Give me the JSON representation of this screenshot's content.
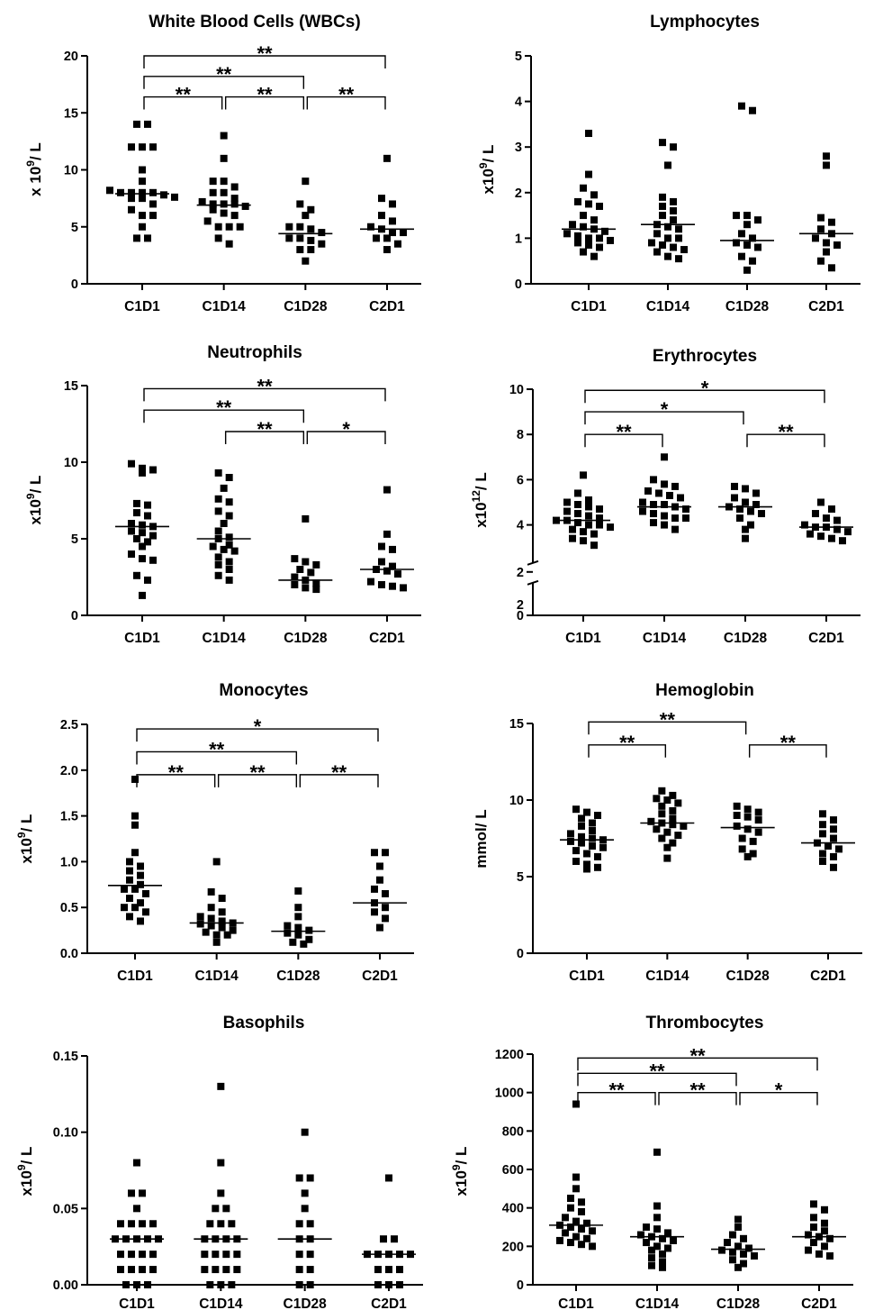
{
  "chart_data": [
    {
      "type": "scatter",
      "title": "White Blood Cells (WBCs)",
      "ylabel": [
        "x 10",
        "9",
        "/ L"
      ],
      "categories": [
        "C1D1",
        "C1D14",
        "C1D28",
        "C2D1"
      ],
      "ylim": [
        0,
        20
      ],
      "yticks": [
        {
          "v": 0,
          "t": "0"
        },
        {
          "v": 5,
          "t": "5"
        },
        {
          "v": 10,
          "t": "10"
        },
        {
          "v": 15,
          "t": "15"
        },
        {
          "v": 20,
          "t": "20"
        }
      ],
      "series": [
        {
          "values": [
            14,
            14,
            12,
            12,
            12,
            10,
            9,
            8.2,
            8,
            8,
            8,
            8,
            7.8,
            7.6,
            7.5,
            7.5,
            7,
            6.5,
            6,
            6,
            5,
            4,
            4
          ]
        },
        {
          "values": [
            13,
            11,
            9,
            9,
            8.5,
            8,
            8,
            7.5,
            7.2,
            7,
            7,
            7,
            6.8,
            6.5,
            6.2,
            6,
            5.5,
            5,
            5,
            5,
            4,
            3.5
          ]
        },
        {
          "values": [
            9,
            7,
            6.5,
            6,
            5,
            5,
            4.8,
            4.5,
            4,
            4,
            3.8,
            3.5,
            3,
            3,
            2
          ]
        },
        {
          "values": [
            11,
            7.5,
            7,
            6,
            5.5,
            5,
            4.8,
            4.5,
            4.5,
            4,
            4,
            3.5,
            3
          ]
        }
      ],
      "medians": [
        7.9,
        6.9,
        4.4,
        4.8
      ],
      "significance": [
        {
          "from": 0,
          "to": 3,
          "label": "**",
          "y": 20
        },
        {
          "from": 0,
          "to": 2,
          "label": "**",
          "y": 18.2
        },
        {
          "from": 0,
          "to": 1,
          "label": "**",
          "y": 16.4
        },
        {
          "from": 1,
          "to": 2,
          "label": "**",
          "y": 16.4
        },
        {
          "from": 2,
          "to": 3,
          "label": "**",
          "y": 16.4
        }
      ]
    },
    {
      "type": "scatter",
      "title": "Lymphocytes",
      "ylabel": [
        "x10",
        "9",
        "/ L"
      ],
      "categories": [
        "C1D1",
        "C1D14",
        "C1D28",
        "C2D1"
      ],
      "ylim": [
        0,
        5
      ],
      "yticks": [
        {
          "v": 0,
          "t": "0"
        },
        {
          "v": 1,
          "t": "1"
        },
        {
          "v": 2,
          "t": "2"
        },
        {
          "v": 3,
          "t": "3"
        },
        {
          "v": 4,
          "t": "4"
        },
        {
          "v": 5,
          "t": "5"
        }
      ],
      "series": [
        {
          "values": [
            3.3,
            2.4,
            2.1,
            1.95,
            1.8,
            1.75,
            1.7,
            1.5,
            1.4,
            1.3,
            1.25,
            1.2,
            1.15,
            1.1,
            1.05,
            1,
            1,
            0.95,
            0.9,
            0.85,
            0.8,
            0.7,
            0.6
          ]
        },
        {
          "values": [
            3.1,
            3,
            2.6,
            1.9,
            1.8,
            1.7,
            1.6,
            1.5,
            1.4,
            1.3,
            1.25,
            1.2,
            1.1,
            1,
            1,
            0.9,
            0.85,
            0.8,
            0.75,
            0.7,
            0.6,
            0.55
          ]
        },
        {
          "values": [
            3.9,
            3.8,
            1.5,
            1.5,
            1.4,
            1.3,
            1.1,
            1,
            0.9,
            0.85,
            0.8,
            0.6,
            0.5,
            0.3
          ]
        },
        {
          "values": [
            2.8,
            2.6,
            1.45,
            1.35,
            1.2,
            1.1,
            1,
            0.9,
            0.85,
            0.7,
            0.5,
            0.35
          ]
        }
      ],
      "medians": [
        1.2,
        1.3,
        0.95,
        1.1
      ],
      "significance": []
    },
    {
      "type": "scatter",
      "title": "Neutrophils",
      "ylabel": [
        "x10",
        "9",
        "/ L"
      ],
      "categories": [
        "C1D1",
        "C1D14",
        "C1D28",
        "C2D1"
      ],
      "ylim": [
        0,
        15
      ],
      "yticks": [
        {
          "v": 0,
          "t": "0"
        },
        {
          "v": 5,
          "t": "5"
        },
        {
          "v": 10,
          "t": "10"
        },
        {
          "v": 15,
          "t": "15"
        }
      ],
      "series": [
        {
          "values": [
            9.9,
            9.6,
            9.5,
            9.3,
            7.3,
            7.2,
            6.7,
            6.5,
            6,
            5.9,
            5.8,
            5.5,
            5.4,
            5.2,
            5,
            4.8,
            4.5,
            4,
            3.7,
            3.6,
            2.6,
            2.3,
            1.3
          ]
        },
        {
          "values": [
            9.3,
            9,
            8.3,
            7.6,
            7.4,
            6.8,
            6.5,
            6,
            5.5,
            5.1,
            5,
            4.6,
            4.5,
            4.3,
            4.2,
            3.8,
            3.5,
            3.3,
            3,
            2.6,
            2.3
          ]
        },
        {
          "values": [
            6.3,
            3.7,
            3.5,
            3.3,
            3,
            2.8,
            2.5,
            2.3,
            2.1,
            2,
            1.8,
            1.7
          ]
        },
        {
          "values": [
            8.2,
            5.3,
            4.5,
            4.3,
            3.5,
            3.2,
            3,
            2.9,
            2.7,
            2.2,
            2,
            1.9,
            1.8
          ]
        }
      ],
      "medians": [
        5.8,
        5.0,
        2.3,
        3.0
      ],
      "significance": [
        {
          "from": 0,
          "to": 3,
          "label": "**",
          "y": 14.8
        },
        {
          "from": 0,
          "to": 2,
          "label": "**",
          "y": 13.4
        },
        {
          "from": 1,
          "to": 2,
          "label": "**",
          "y": 12
        },
        {
          "from": 2,
          "to": 3,
          "label": "*",
          "y": 12
        }
      ]
    },
    {
      "type": "scatter",
      "title": "Erythrocytes",
      "ylabel": [
        "x10",
        "12",
        "/ L"
      ],
      "categories": [
        "C1D1",
        "C1D14",
        "C1D28",
        "C2D1"
      ],
      "ylim": [
        0,
        10
      ],
      "yticks": [
        {
          "v": 0,
          "t": "0"
        },
        {
          "v": 2,
          "t": "2"
        },
        {
          "v": 4,
          "t": "4"
        },
        {
          "v": 6,
          "t": "6"
        },
        {
          "v": 8,
          "t": "8"
        },
        {
          "v": 10,
          "t": "10"
        }
      ],
      "series": [
        {
          "values": [
            6.2,
            5.4,
            5.1,
            5,
            4.9,
            4.8,
            4.7,
            4.6,
            4.5,
            4.4,
            4.3,
            4.2,
            4.2,
            4.1,
            4,
            4,
            3.9,
            3.8,
            3.7,
            3.6,
            3.4,
            3.3,
            3.1
          ]
        },
        {
          "values": [
            7,
            6,
            5.8,
            5.7,
            5.5,
            5.4,
            5.3,
            5.2,
            5,
            4.9,
            4.9,
            4.8,
            4.7,
            4.6,
            4.5,
            4.4,
            4.3,
            4.3,
            4.1,
            4,
            3.8
          ]
        },
        {
          "values": [
            5.7,
            5.6,
            5.4,
            5.2,
            5,
            4.9,
            4.8,
            4.7,
            4.6,
            4.5,
            4.3,
            4,
            3.8,
            3.4
          ]
        },
        {
          "values": [
            5,
            4.7,
            4.5,
            4.3,
            4.2,
            4,
            3.9,
            3.9,
            3.8,
            3.7,
            3.6,
            3.5,
            3.4,
            3.3
          ]
        }
      ],
      "medians": [
        4.2,
        4.8,
        4.8,
        3.9
      ],
      "significance": [
        {
          "from": 0,
          "to": 3,
          "label": "*",
          "y": 9.95
        },
        {
          "from": 0,
          "to": 2,
          "label": "*",
          "y": 9.0
        },
        {
          "from": 0,
          "to": 1,
          "label": "**",
          "y": 8.0
        },
        {
          "from": 2,
          "to": 3,
          "label": "**",
          "y": 8.0
        }
      ]
    },
    {
      "type": "scatter",
      "title": "Monocytes",
      "ylabel": [
        "x10",
        "9",
        "/ L"
      ],
      "categories": [
        "C1D1",
        "C1D14",
        "C1D28",
        "C2D1"
      ],
      "ylim": [
        0,
        2.5
      ],
      "yticks": [
        {
          "v": 0,
          "t": "0.0"
        },
        {
          "v": 0.5,
          "t": "0.5"
        },
        {
          "v": 1,
          "t": "1.0"
        },
        {
          "v": 1.5,
          "t": "1.5"
        },
        {
          "v": 2,
          "t": "2.0"
        },
        {
          "v": 2.5,
          "t": "2.5"
        }
      ],
      "series": [
        {
          "values": [
            1.9,
            1.5,
            1.4,
            1.1,
            1,
            0.95,
            0.9,
            0.85,
            0.8,
            0.75,
            0.7,
            0.7,
            0.65,
            0.6,
            0.55,
            0.5,
            0.5,
            0.45,
            0.4,
            0.35
          ]
        },
        {
          "values": [
            1,
            0.67,
            0.6,
            0.5,
            0.45,
            0.4,
            0.38,
            0.35,
            0.33,
            0.32,
            0.3,
            0.28,
            0.25,
            0.23,
            0.2,
            0.2,
            0.12
          ]
        },
        {
          "values": [
            0.68,
            0.5,
            0.4,
            0.3,
            0.28,
            0.25,
            0.22,
            0.2,
            0.15,
            0.12,
            0.1
          ]
        },
        {
          "values": [
            1.1,
            1.1,
            0.95,
            0.8,
            0.7,
            0.65,
            0.55,
            0.5,
            0.45,
            0.38,
            0.28
          ]
        }
      ],
      "medians": [
        0.74,
        0.33,
        0.24,
        0.55
      ],
      "significance": [
        {
          "from": 0,
          "to": 3,
          "label": "*",
          "y": 2.45
        },
        {
          "from": 0,
          "to": 2,
          "label": "**",
          "y": 2.2
        },
        {
          "from": 0,
          "to": 1,
          "label": "**",
          "y": 1.95
        },
        {
          "from": 1,
          "to": 2,
          "label": "**",
          "y": 1.95
        },
        {
          "from": 2,
          "to": 3,
          "label": "**",
          "y": 1.95
        }
      ]
    },
    {
      "type": "scatter",
      "title": "Hemoglobin",
      "ylabel": [
        "mmol/ L",
        "",
        ""
      ],
      "categories": [
        "C1D1",
        "C1D14",
        "C1D28",
        "C2D1"
      ],
      "ylim": [
        0,
        15
      ],
      "yticks": [
        {
          "v": 0,
          "t": "0"
        },
        {
          "v": 5,
          "t": "5"
        },
        {
          "v": 10,
          "t": "10"
        },
        {
          "v": 15,
          "t": "15"
        }
      ],
      "series": [
        {
          "values": [
            9.4,
            9.2,
            9,
            8.8,
            8.5,
            8.3,
            8,
            7.8,
            7.6,
            7.5,
            7.4,
            7.3,
            7.2,
            7,
            6.9,
            6.7,
            6.5,
            6.3,
            6,
            5.8,
            5.6,
            5.5
          ]
        },
        {
          "values": [
            10.6,
            10.3,
            10.1,
            10,
            9.8,
            9.6,
            9.3,
            9.1,
            8.8,
            8.6,
            8.5,
            8.4,
            8.3,
            8.1,
            7.9,
            7.7,
            7.5,
            7.2,
            6.9,
            6.2
          ]
        },
        {
          "values": [
            9.6,
            9.4,
            9.2,
            9,
            8.9,
            8.7,
            8.3,
            8.1,
            7.9,
            7.5,
            7.3,
            6.8,
            6.5,
            6.3
          ]
        },
        {
          "values": [
            9.1,
            8.7,
            8.4,
            8.1,
            7.8,
            7.5,
            7.2,
            7,
            6.8,
            6.5,
            6.3,
            6,
            5.6
          ]
        }
      ],
      "medians": [
        7.4,
        8.5,
        8.2,
        7.2
      ],
      "significance": [
        {
          "from": 0,
          "to": 2,
          "label": "**",
          "y": 15.1
        },
        {
          "from": 0,
          "to": 1,
          "label": "**",
          "y": 13.6
        },
        {
          "from": 2,
          "to": 3,
          "label": "**",
          "y": 13.6
        }
      ]
    },
    {
      "type": "scatter",
      "title": "Basophils",
      "ylabel": [
        "x10",
        "9",
        "/ L"
      ],
      "categories": [
        "C1D1",
        "C1D14",
        "C1D28",
        "C2D1"
      ],
      "ylim": [
        0,
        0.15
      ],
      "yticks": [
        {
          "v": 0,
          "t": "0.00"
        },
        {
          "v": 0.05,
          "t": "0.05"
        },
        {
          "v": 0.1,
          "t": "0.10"
        },
        {
          "v": 0.15,
          "t": "0.15"
        }
      ],
      "series": [
        {
          "values": [
            0.08,
            0.06,
            0.06,
            0.05,
            0.04,
            0.04,
            0.04,
            0.04,
            0.03,
            0.03,
            0.03,
            0.03,
            0.03,
            0.02,
            0.02,
            0.02,
            0.02,
            0.01,
            0.01,
            0.01,
            0.01,
            0,
            0,
            0
          ]
        },
        {
          "values": [
            0.13,
            0.08,
            0.06,
            0.05,
            0.05,
            0.04,
            0.04,
            0.04,
            0.03,
            0.03,
            0.03,
            0.03,
            0.02,
            0.02,
            0.02,
            0.02,
            0.01,
            0.01,
            0.01,
            0.01,
            0,
            0,
            0
          ]
        },
        {
          "values": [
            0.1,
            0.07,
            0.07,
            0.06,
            0.05,
            0.04,
            0.04,
            0.03,
            0.03,
            0.02,
            0.02,
            0.01,
            0.01,
            0,
            0
          ]
        },
        {
          "values": [
            0.07,
            0.03,
            0.03,
            0.02,
            0.02,
            0.02,
            0.02,
            0.02,
            0.01,
            0.01,
            0.01,
            0,
            0,
            0
          ]
        }
      ],
      "medians": [
        0.03,
        0.03,
        0.03,
        0.02
      ],
      "significance": []
    },
    {
      "type": "scatter",
      "title": "Thrombocytes",
      "ylabel": [
        "x10",
        "9",
        "/ L"
      ],
      "categories": [
        "C1D1",
        "C1D14",
        "C1D28",
        "C2D1"
      ],
      "ylim": [
        0,
        1200
      ],
      "yticks": [
        {
          "v": 0,
          "t": "0"
        },
        {
          "v": 200,
          "t": "200"
        },
        {
          "v": 400,
          "t": "400"
        },
        {
          "v": 600,
          "t": "600"
        },
        {
          "v": 800,
          "t": "800"
        },
        {
          "v": 1000,
          "t": "1000"
        },
        {
          "v": 1200,
          "t": "1200"
        }
      ],
      "series": [
        {
          "values": [
            940,
            560,
            500,
            450,
            430,
            400,
            380,
            350,
            330,
            320,
            310,
            300,
            290,
            280,
            270,
            250,
            240,
            230,
            220,
            210,
            200
          ]
        },
        {
          "values": [
            690,
            410,
            350,
            300,
            290,
            270,
            260,
            250,
            240,
            230,
            220,
            200,
            190,
            180,
            160,
            140,
            120,
            100,
            90
          ]
        },
        {
          "values": [
            340,
            300,
            260,
            240,
            220,
            200,
            190,
            180,
            170,
            160,
            150,
            130,
            110,
            90
          ]
        },
        {
          "values": [
            420,
            390,
            350,
            320,
            300,
            280,
            260,
            250,
            240,
            220,
            200,
            180,
            160,
            150
          ]
        }
      ],
      "medians": [
        310,
        250,
        185,
        250
      ],
      "significance": [
        {
          "from": 0,
          "to": 3,
          "label": "**",
          "y": 1180
        },
        {
          "from": 0,
          "to": 2,
          "label": "**",
          "y": 1100
        },
        {
          "from": 0,
          "to": 1,
          "label": "**",
          "y": 1000
        },
        {
          "from": 1,
          "to": 2,
          "label": "**",
          "y": 1000
        },
        {
          "from": 2,
          "to": 3,
          "label": "*",
          "y": 1000
        }
      ]
    }
  ]
}
